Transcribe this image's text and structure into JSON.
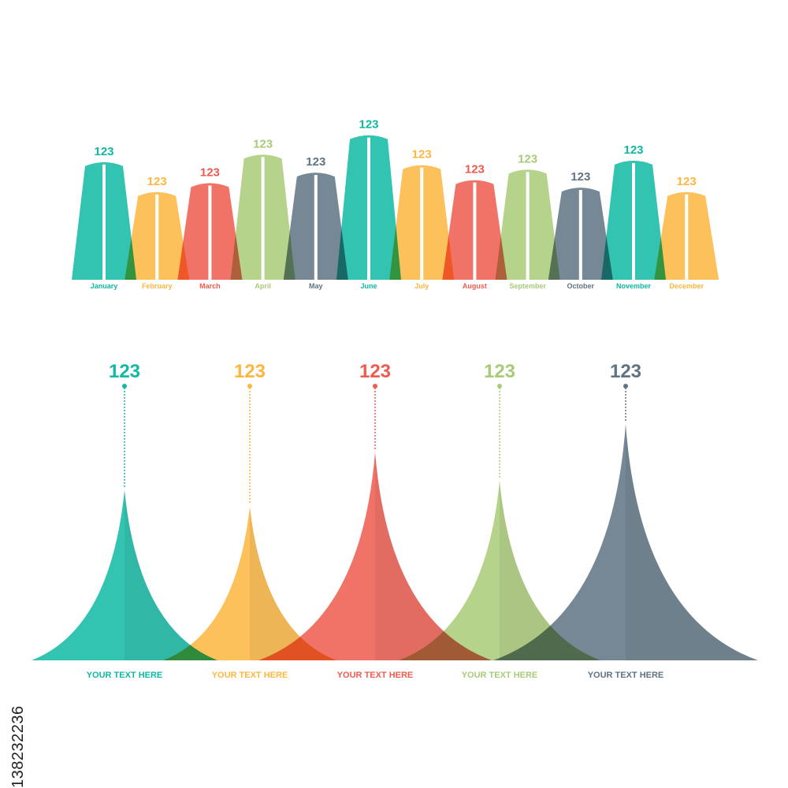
{
  "stock_id": "138232236",
  "colors": {
    "teal": "#0FB9A3",
    "orange": "#FDB63F",
    "red": "#EF5B4E",
    "green": "#A9CB78",
    "slate": "#5E7384"
  },
  "chart_data": [
    {
      "type": "bar",
      "categories": [
        "January",
        "February",
        "March",
        "April",
        "May",
        "June",
        "July",
        "August",
        "September",
        "October",
        "November",
        "December"
      ],
      "value_labels": [
        "123",
        "123",
        "123",
        "123",
        "123",
        "123",
        "123",
        "123",
        "123",
        "123",
        "123",
        "123"
      ],
      "relative_heights": [
        0.78,
        0.58,
        0.64,
        0.83,
        0.71,
        0.96,
        0.76,
        0.66,
        0.73,
        0.61,
        0.79,
        0.58
      ],
      "colors": [
        "#0FB9A3",
        "#FDB63F",
        "#EF5B4E",
        "#A9CB78",
        "#5E7384",
        "#0FB9A3",
        "#FDB63F",
        "#EF5B4E",
        "#A9CB78",
        "#5E7384",
        "#0FB9A3",
        "#FDB63F"
      ],
      "axis": "none",
      "grid": false
    },
    {
      "type": "area",
      "shape": "peak",
      "categories": [
        "YOUR TEXT HERE",
        "YOUR TEXT HERE",
        "YOUR TEXT HERE",
        "YOUR TEXT HERE",
        "YOUR TEXT HERE"
      ],
      "value_labels": [
        "123",
        "123",
        "123",
        "123",
        "123"
      ],
      "relative_heights": [
        0.72,
        0.65,
        0.88,
        0.76,
        1.0
      ],
      "colors": [
        "#0FB9A3",
        "#FDB63F",
        "#EF5B4E",
        "#A9CB78",
        "#5E7384"
      ],
      "axis": "none",
      "grid": false
    }
  ]
}
